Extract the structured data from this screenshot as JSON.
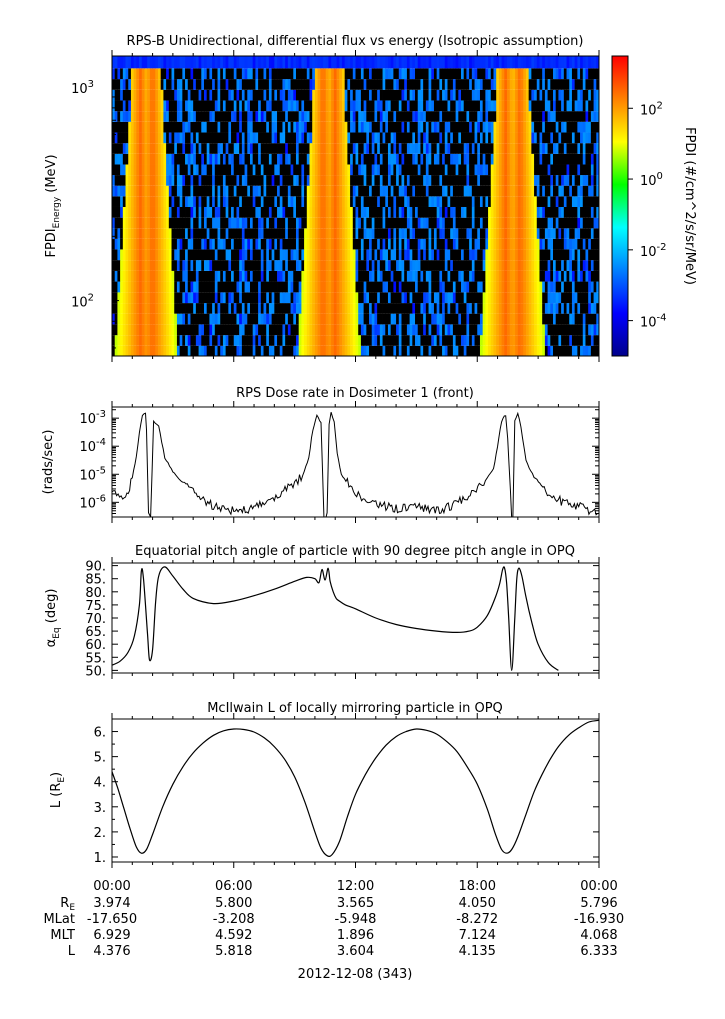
{
  "chart_data": [
    {
      "type": "heatmap",
      "title": "RPS-B  Unidirectional, differential flux vs energy (Isotropic assumption)",
      "ylabel": "FPDI",
      "ylabel_sub": "Energy",
      "ylabel_unit": " (MeV)",
      "yscale": "log",
      "ylim": [
        55,
        1400
      ],
      "y_ticks": [
        {
          "value": 100,
          "base": "10",
          "exp": "2"
        },
        {
          "value": 1000,
          "base": "10",
          "exp": "3"
        }
      ],
      "energy_channels_mev": [
        58,
        65,
        73,
        82,
        92,
        103,
        116,
        130,
        146,
        164,
        184,
        206,
        231,
        259,
        291,
        326,
        366,
        410,
        460,
        516,
        579,
        650,
        729,
        818,
        918,
        1030,
        1156,
        1300
      ],
      "xlim_hours": [
        0,
        24
      ],
      "flux_peaks_hours": [
        1.4,
        2.0,
        10.4,
        11.0,
        19.4,
        20.1
      ],
      "colorbar": {
        "label": "FPDI (#/cm^2/s/sr/MeV)",
        "scale": "log",
        "range": [
          1e-05,
          3000
        ],
        "ticks": [
          {
            "value": 0.0001,
            "base": "10",
            "exp": "-4"
          },
          {
            "value": 0.01,
            "base": "10",
            "exp": "-2"
          },
          {
            "value": 1,
            "base": "10",
            "exp": "0"
          },
          {
            "value": 100,
            "base": "10",
            "exp": "2"
          }
        ],
        "colors": [
          "#00008b",
          "#0000ff",
          "#0080ff",
          "#00ffff",
          "#00ff00",
          "#ffff00",
          "#ff8000",
          "#ff0000"
        ]
      }
    },
    {
      "type": "line",
      "title": "RPS  Dose rate in Dosimeter 1 (front)",
      "ylabel": "(rads/sec)",
      "yscale": "log",
      "ylim": [
        3e-07,
        0.0025
      ],
      "y_ticks": [
        {
          "value": 1e-06,
          "base": "10",
          "exp": "-6"
        },
        {
          "value": 1e-05,
          "base": "10",
          "exp": "-5"
        },
        {
          "value": 0.0001,
          "base": "10",
          "exp": "-4"
        },
        {
          "value": 0.001,
          "base": "10",
          "exp": "-3"
        }
      ],
      "x_hours": [
        0.0,
        0.3,
        0.6,
        0.8,
        1.0,
        1.2,
        1.35,
        1.5,
        1.65,
        1.7,
        1.8,
        1.9,
        2.05,
        2.3,
        2.6,
        3.0,
        3.5,
        4.0,
        5.0,
        6.0,
        7.0,
        8.0,
        8.6,
        9.0,
        9.4,
        9.7,
        9.9,
        10.1,
        10.3,
        10.45,
        10.6,
        10.7,
        10.8,
        10.95,
        11.1,
        11.3,
        11.6,
        11.9,
        12.3,
        13.0,
        14.0,
        15.0,
        16.0,
        17.0,
        17.8,
        18.4,
        18.8,
        19.0,
        19.2,
        19.4,
        19.5,
        19.7,
        19.75,
        19.85,
        20.0,
        20.15,
        20.4,
        20.8,
        21.3,
        22.0,
        23.0,
        24.0
      ],
      "values": [
        2e-06,
        2e-06,
        1.6e-06,
        2.5e-06,
        8e-06,
        4e-05,
        0.0003,
        0.0012,
        0.0016,
        0.0004,
        3e-07,
        3e-07,
        0.0008,
        0.0005,
        4e-05,
        1.2e-05,
        5e-06,
        2.5e-06,
        7e-07,
        5e-07,
        6e-07,
        1.5e-06,
        3e-06,
        5e-06,
        9e-06,
        4e-05,
        0.0004,
        0.0012,
        0.0007,
        3e-07,
        3e-07,
        0.0006,
        0.0016,
        0.0008,
        6e-05,
        1e-05,
        5e-06,
        2.5e-06,
        1.5e-06,
        8e-07,
        6e-07,
        7e-07,
        5e-07,
        9e-07,
        2.5e-06,
        6e-06,
        1.5e-05,
        0.0001,
        0.0008,
        0.0013,
        0.0002,
        3e-07,
        3e-07,
        0.0008,
        0.0016,
        0.0005,
        3e-05,
        8e-06,
        3e-06,
        1.2e-06,
        7e-07,
        4e-07
      ]
    },
    {
      "type": "line",
      "title": "Equatorial pitch angle of particle with 90 degree pitch angle in OPQ",
      "ylabel": "α",
      "ylabel_sub": "Eq",
      "ylabel_unit": " (deg)",
      "ylim": [
        49,
        91
      ],
      "y_ticks": [
        50,
        55,
        60,
        65,
        70,
        75,
        80,
        85,
        90
      ],
      "x_hours": [
        0.0,
        0.4,
        0.8,
        1.1,
        1.35,
        1.45,
        1.55,
        1.75,
        1.85,
        2.0,
        2.15,
        2.3,
        2.6,
        3.0,
        3.5,
        4.0,
        5.0,
        6.0,
        7.0,
        8.0,
        9.0,
        9.6,
        10.0,
        10.2,
        10.35,
        10.5,
        10.65,
        10.75,
        10.9,
        11.05,
        11.2,
        11.5,
        12.0,
        13.0,
        14.0,
        15.0,
        16.0,
        17.0,
        17.6,
        18.0,
        18.5,
        18.9,
        19.1,
        19.25,
        19.35,
        19.45,
        19.55,
        19.7,
        19.85,
        19.95,
        20.05,
        20.2,
        20.4,
        20.7,
        21.0,
        21.5,
        22.0
      ],
      "values": [
        52.0,
        53.5,
        57.0,
        63.0,
        75.0,
        88.0,
        85.0,
        64.0,
        54.0,
        58.0,
        76.0,
        86.0,
        89.5,
        86.0,
        81.0,
        77.5,
        75.5,
        76.5,
        78.5,
        81.0,
        84.0,
        85.5,
        85.0,
        83.5,
        88.5,
        84.5,
        89.0,
        84.0,
        80.0,
        77.5,
        76.5,
        75.0,
        73.5,
        70.0,
        67.5,
        66.0,
        65.0,
        64.5,
        65.0,
        66.5,
        71.0,
        78.0,
        83.0,
        88.5,
        89.0,
        83.0,
        70.0,
        50.0,
        70.0,
        85.0,
        89.0,
        86.0,
        78.0,
        68.0,
        60.0,
        53.0,
        50.0
      ]
    },
    {
      "type": "line",
      "title": "McIlwain L of locally mirroring particle in OPQ",
      "ylabel": "L (R",
      "ylabel_sub": "E",
      "ylabel_unit": ")",
      "ylim": [
        0.8,
        6.5
      ],
      "y_ticks": [
        1,
        2,
        3,
        4,
        5,
        6
      ],
      "y_tick_labels": [
        "1.",
        "2.",
        "3.",
        "4.",
        "5.",
        "6."
      ],
      "x_hours": [
        0.0,
        0.3,
        0.6,
        0.9,
        1.2,
        1.45,
        1.7,
        2.0,
        2.5,
        3.0,
        3.5,
        4.0,
        4.5,
        5.0,
        5.5,
        6.0,
        6.5,
        7.0,
        7.5,
        8.0,
        8.5,
        9.0,
        9.5,
        10.0,
        10.3,
        10.6,
        10.85,
        11.2,
        11.6,
        12.0,
        12.5,
        13.0,
        13.5,
        14.0,
        14.5,
        15.0,
        15.5,
        16.0,
        16.5,
        17.0,
        17.5,
        18.0,
        18.5,
        18.9,
        19.2,
        19.45,
        19.7,
        20.0,
        20.4,
        20.8,
        21.2,
        21.6,
        22.0,
        22.5,
        23.0,
        23.5,
        24.0
      ],
      "values": [
        4.4,
        3.7,
        2.9,
        2.1,
        1.4,
        1.15,
        1.3,
        1.9,
        3.0,
        3.9,
        4.6,
        5.15,
        5.55,
        5.85,
        6.03,
        6.1,
        6.08,
        5.98,
        5.75,
        5.4,
        4.9,
        4.2,
        3.2,
        2.0,
        1.35,
        1.05,
        1.1,
        1.6,
        2.6,
        3.5,
        4.3,
        4.95,
        5.45,
        5.8,
        6.0,
        6.1,
        6.05,
        5.9,
        5.6,
        5.2,
        4.6,
        3.9,
        2.9,
        1.9,
        1.3,
        1.15,
        1.3,
        1.8,
        2.7,
        3.6,
        4.3,
        4.9,
        5.4,
        5.85,
        6.15,
        6.38,
        6.45
      ]
    }
  ],
  "time_axis": {
    "tick_labels": [
      "00:00",
      "06:00",
      "12:00",
      "18:00",
      "00:00"
    ],
    "rows": [
      {
        "label": "R",
        "label_sub": "E",
        "values": [
          "3.974",
          "5.800",
          "3.565",
          "4.050",
          "5.796"
        ]
      },
      {
        "label": "MLat",
        "label_sub": "",
        "values": [
          "-17.650",
          "-3.208",
          "-5.948",
          "-8.272",
          "-16.930"
        ]
      },
      {
        "label": "MLT",
        "label_sub": "",
        "values": [
          "6.929",
          "4.592",
          "1.896",
          "7.124",
          "4.068"
        ]
      },
      {
        "label": "L",
        "label_sub": "",
        "values": [
          "4.376",
          "5.818",
          "3.604",
          "4.135",
          "6.333"
        ]
      }
    ],
    "date": "2012-12-08 (343)"
  }
}
